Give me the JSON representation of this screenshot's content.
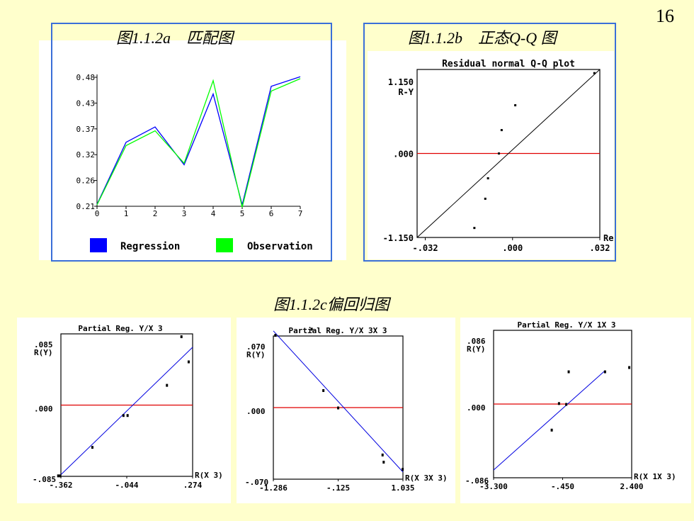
{
  "page_number": "16",
  "captions": {
    "a": "图1.1.2a　匹配图",
    "b": "图1.1.2b　正态Q-Q 图",
    "c": "图1.1.2c偏回归图"
  },
  "chart_data": [
    {
      "type": "line",
      "x": [
        0,
        1,
        2,
        3,
        4,
        5,
        6,
        7
      ],
      "xlim": [
        0,
        7
      ],
      "ylim": [
        0.21,
        0.48
      ],
      "yticks": [
        "0.21",
        "0.26",
        "0.32",
        "0.37",
        "0.43",
        "0.48"
      ],
      "xticks": [
        "0",
        "1",
        "2",
        "3",
        "4",
        "5",
        "6",
        "7"
      ],
      "series": [
        {
          "name": "Regression",
          "color": "#0000ff",
          "values": [
            0.214,
            0.344,
            0.376,
            0.297,
            0.445,
            0.213,
            0.461,
            0.481
          ]
        },
        {
          "name": "Observation",
          "color": "#00ff00",
          "values": [
            0.213,
            0.337,
            0.368,
            0.3,
            0.473,
            0.208,
            0.451,
            0.477
          ]
        }
      ],
      "legend": "bottom"
    },
    {
      "type": "scatter",
      "title": "Residual normal Q-Q plot",
      "ylabel": "R-Y",
      "xlabel": "Re",
      "xlim": [
        -0.035,
        0.032
      ],
      "ylim": [
        -1.15,
        1.15
      ],
      "yticks": [
        "1.150",
        ".000",
        "-1.150"
      ],
      "xticks": [
        "-.032",
        ".000",
        ".032"
      ],
      "reference_line_y": 0,
      "diagonal": true,
      "points": [
        [
          -0.014,
          -1.02
        ],
        [
          -0.01,
          -0.62
        ],
        [
          -0.009,
          -0.34
        ],
        [
          -0.005,
          0.0
        ],
        [
          -0.004,
          0.32
        ],
        [
          0.001,
          0.66
        ],
        [
          0.03,
          1.1
        ]
      ]
    },
    {
      "type": "scatter",
      "title": "Partial Reg.  Y/X 3",
      "ylabel": "R(Y)",
      "xlabel": "R(X 3)",
      "xlim": [
        -0.362,
        0.274
      ],
      "ylim": [
        -0.085,
        0.085
      ],
      "yticks": [
        ".085",
        ".000",
        "-.085"
      ],
      "xticks": [
        "-.362",
        "-.044",
        ".274"
      ],
      "reference_line_y": 0,
      "fit_line": [
        [
          -0.362,
          -0.083
        ],
        [
          0.274,
          0.069
        ]
      ],
      "points": [
        [
          -0.375,
          -0.084
        ],
        [
          -0.365,
          -0.084
        ],
        [
          -0.21,
          -0.05
        ],
        [
          -0.06,
          -0.012
        ],
        [
          -0.04,
          -0.012
        ],
        [
          0.15,
          0.024
        ],
        [
          0.22,
          0.082
        ],
        [
          0.255,
          0.052
        ]
      ]
    },
    {
      "type": "scatter",
      "title": "Partial Reg.  Y/X 3X 3",
      "ylabel": "R(Y)",
      "xlabel": "R(X 3X 3)",
      "xlim": [
        -1.286,
        1.035
      ],
      "ylim": [
        -0.07,
        0.07
      ],
      "yticks": [
        ".070",
        ".000",
        "-.070"
      ],
      "xticks": [
        "-1.286",
        "-.125",
        "1.035"
      ],
      "reference_line_y": 0,
      "fit_line": [
        [
          -1.286,
          0.075
        ],
        [
          1.035,
          -0.063
        ]
      ],
      "points": [
        [
          -1.25,
          0.071
        ],
        [
          -0.6,
          0.077
        ],
        [
          -0.39,
          0.017
        ],
        [
          -0.125,
          0.0
        ],
        [
          0.67,
          -0.046
        ],
        [
          0.69,
          -0.053
        ],
        [
          1.03,
          -0.06
        ]
      ]
    },
    {
      "type": "scatter",
      "title": "Partial Reg.  Y/X 1X 3",
      "ylabel": "R(Y)",
      "xlabel": "R(X 1X 3)",
      "xlim": [
        -3.3,
        2.4
      ],
      "ylim": [
        -0.086,
        0.086
      ],
      "yticks": [
        ".086",
        ".000",
        "-.086"
      ],
      "xticks": [
        "-3.300",
        "-.450",
        "2.400"
      ],
      "reference_line_y": 0,
      "fit_line": [
        [
          -3.3,
          -0.077
        ],
        [
          1.3,
          0.039
        ]
      ],
      "points": [
        [
          -0.9,
          -0.03
        ],
        [
          -0.6,
          0.001
        ],
        [
          -0.3,
          0.0
        ],
        [
          -0.2,
          0.038
        ],
        [
          1.3,
          0.038
        ],
        [
          2.3,
          0.043
        ]
      ]
    }
  ]
}
